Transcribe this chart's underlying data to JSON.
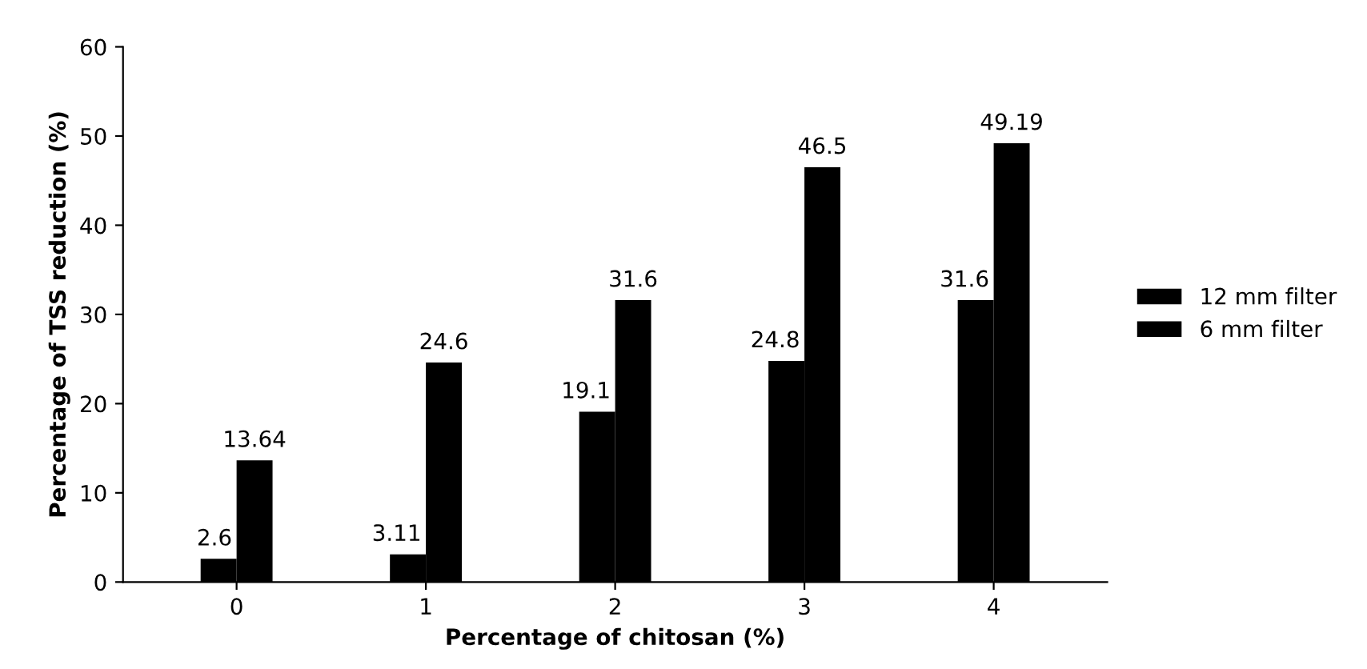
{
  "chart_data": {
    "type": "bar",
    "xlabel": "Percentage of chitosan (%)",
    "ylabel": "Percentage of TSS reduction (%)",
    "categories": [
      "0",
      "1",
      "2",
      "3",
      "4"
    ],
    "series": [
      {
        "name": "12 mm filter",
        "color": "#000000",
        "values": [
          2.6,
          3.11,
          19.1,
          24.8,
          31.6
        ]
      },
      {
        "name": "6 mm filter",
        "color": "#000000",
        "values": [
          13.64,
          24.6,
          31.6,
          46.5,
          49.19
        ]
      }
    ],
    "ylim": [
      0,
      60
    ],
    "yticks": [
      0,
      10,
      20,
      30,
      40,
      50,
      60
    ],
    "data_labels": true,
    "legend": "right",
    "grid": false
  }
}
